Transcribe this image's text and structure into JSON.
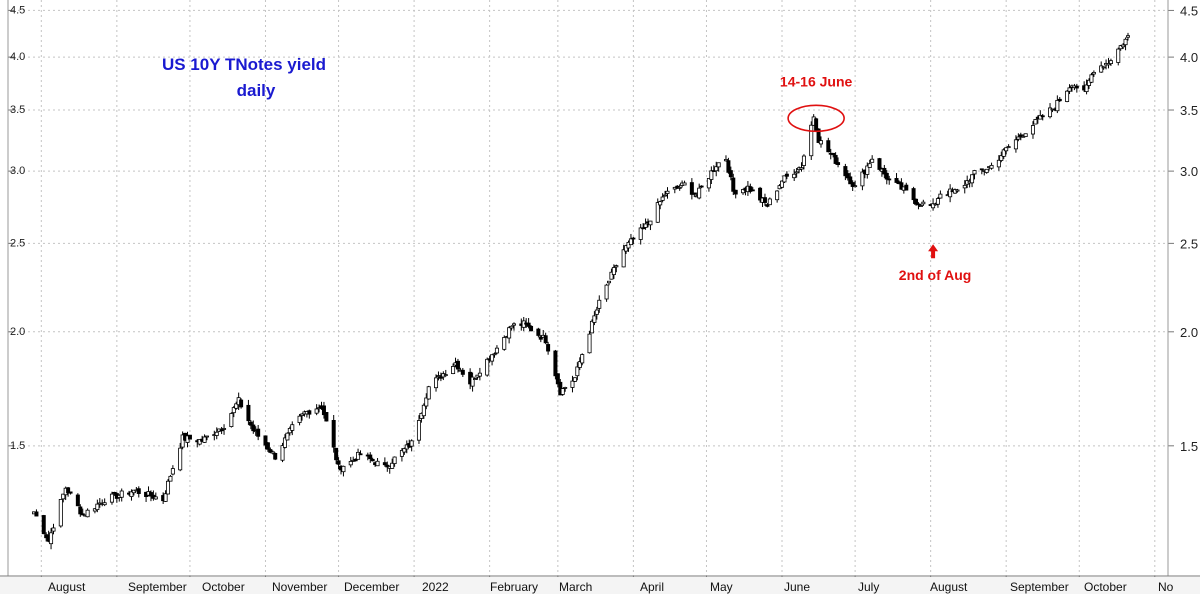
{
  "chart_data": {
    "type": "candlestick",
    "title": "US 10Y TNotes yield",
    "subtitle": "daily",
    "y_scale": "log",
    "ylim": [
      1.08,
      4.62
    ],
    "y_ticks": [
      "1.5",
      "2.0",
      "2.5",
      "3.0",
      "3.5",
      "4.0",
      "4.5"
    ],
    "x_labels": [
      "August",
      "September",
      "October",
      "November",
      "December",
      "2022",
      "February",
      "March",
      "April",
      "May",
      "June",
      "July",
      "August",
      "September",
      "October",
      "No"
    ],
    "grid": true,
    "start_date": "2021-07-29",
    "end_date": "2022-10-21",
    "close_anchors": [
      [
        "2021-07-29",
        1.27
      ],
      [
        "2021-08-04",
        1.18
      ],
      [
        "2021-08-11",
        1.35
      ],
      [
        "2021-08-18",
        1.26
      ],
      [
        "2021-08-27",
        1.31
      ],
      [
        "2021-09-08",
        1.34
      ],
      [
        "2021-09-20",
        1.31
      ],
      [
        "2021-09-28",
        1.53
      ],
      [
        "2021-10-06",
        1.52
      ],
      [
        "2021-10-15",
        1.58
      ],
      [
        "2021-10-21",
        1.68
      ],
      [
        "2021-10-27",
        1.56
      ],
      [
        "2021-11-05",
        1.46
      ],
      [
        "2021-11-12",
        1.57
      ],
      [
        "2021-11-17",
        1.63
      ],
      [
        "2021-11-24",
        1.66
      ],
      [
        "2021-12-01",
        1.42
      ],
      [
        "2021-12-06",
        1.44
      ],
      [
        "2021-12-10",
        1.47
      ],
      [
        "2021-12-20",
        1.42
      ],
      [
        "2021-12-31",
        1.51
      ],
      [
        "2022-01-07",
        1.74
      ],
      [
        "2022-01-18",
        1.85
      ],
      [
        "2022-01-24",
        1.76
      ],
      [
        "2022-02-04",
        1.92
      ],
      [
        "2022-02-10",
        2.03
      ],
      [
        "2022-02-15",
        2.04
      ],
      [
        "2022-02-24",
        1.96
      ],
      [
        "2022-03-02",
        1.72
      ],
      [
        "2022-03-08",
        1.78
      ],
      [
        "2022-03-18",
        2.15
      ],
      [
        "2022-03-28",
        2.46
      ],
      [
        "2022-04-06",
        2.61
      ],
      [
        "2022-04-14",
        2.83
      ],
      [
        "2022-04-22",
        2.9
      ],
      [
        "2022-04-27",
        2.82
      ],
      [
        "2022-05-05",
        3.05
      ],
      [
        "2022-05-09",
        3.1
      ],
      [
        "2022-05-12",
        2.85
      ],
      [
        "2022-05-18",
        2.88
      ],
      [
        "2022-05-26",
        2.75
      ],
      [
        "2022-06-01",
        2.93
      ],
      [
        "2022-06-09",
        3.04
      ],
      [
        "2022-06-14",
        3.45
      ],
      [
        "2022-06-16",
        3.25
      ],
      [
        "2022-06-23",
        3.08
      ],
      [
        "2022-07-01",
        2.88
      ],
      [
        "2022-07-08",
        3.1
      ],
      [
        "2022-07-15",
        2.93
      ],
      [
        "2022-07-21",
        2.86
      ],
      [
        "2022-07-26",
        2.78
      ],
      [
        "2022-08-02",
        2.74
      ],
      [
        "2022-08-05",
        2.84
      ],
      [
        "2022-08-12",
        2.85
      ],
      [
        "2022-08-19",
        2.98
      ],
      [
        "2022-08-26",
        3.04
      ],
      [
        "2022-09-02",
        3.19
      ],
      [
        "2022-09-14",
        3.41
      ],
      [
        "2022-09-21",
        3.53
      ],
      [
        "2022-09-28",
        3.75
      ],
      [
        "2022-10-03",
        3.65
      ],
      [
        "2022-10-07",
        3.88
      ],
      [
        "2022-10-13",
        3.95
      ],
      [
        "2022-10-21",
        4.21
      ]
    ],
    "annotations": [
      {
        "text": "14-16 June",
        "date": "2022-06-15",
        "value": 3.48,
        "marker": "ellipse"
      },
      {
        "text": "2nd of Aug",
        "date": "2022-08-02",
        "value": 2.52,
        "marker": "arrow-up"
      }
    ]
  },
  "colors": {
    "up": "#ffffff",
    "down": "#000000",
    "grid": "#c4c4c4",
    "title": "#1a1ad0",
    "annotation": "#e01010"
  }
}
